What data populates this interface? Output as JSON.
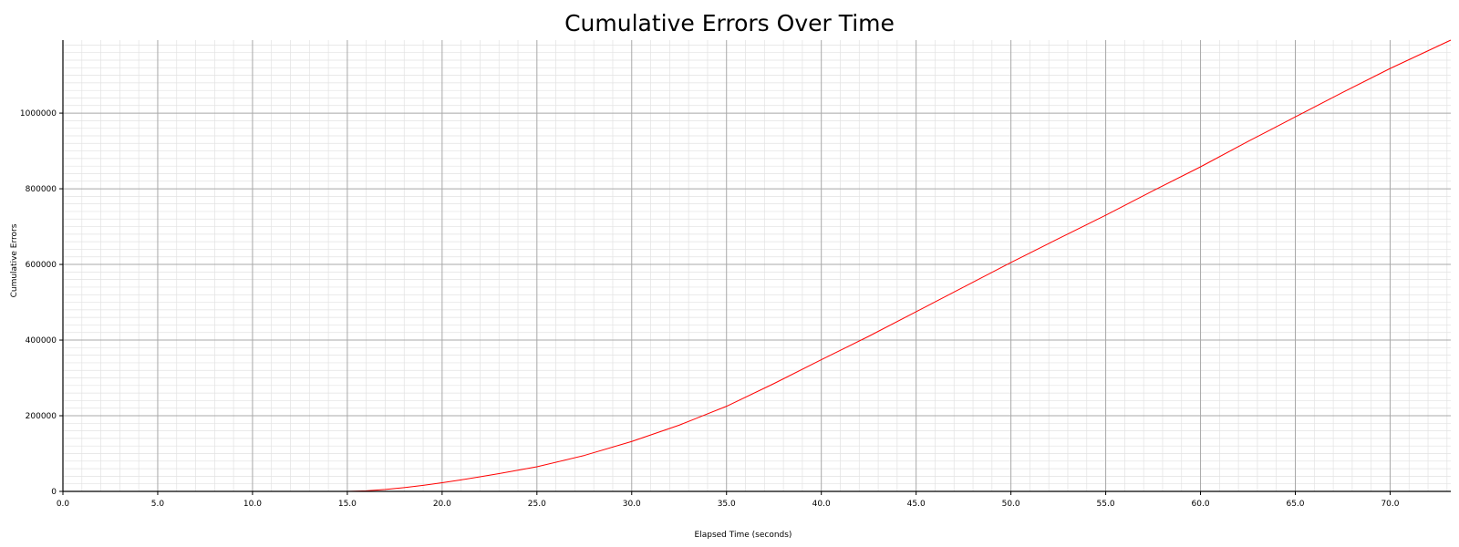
{
  "chart_data": {
    "type": "line",
    "title": "Cumulative Errors Over Time",
    "xlabel": "Elapsed Time (seconds)",
    "ylabel": "Cumulative Errors",
    "xlim": [
      0,
      73.2
    ],
    "ylim": [
      0,
      1193000
    ],
    "x_ticks": [
      0,
      5,
      10,
      15,
      20,
      25,
      30,
      35,
      40,
      45,
      50,
      55,
      60,
      65,
      70
    ],
    "x_tick_labels": [
      "0.0",
      "5.0",
      "10.0",
      "15.0",
      "20.0",
      "25.0",
      "30.0",
      "35.0",
      "40.0",
      "45.0",
      "50.0",
      "55.0",
      "60.0",
      "65.0",
      "70.0"
    ],
    "y_ticks": [
      0,
      200000,
      400000,
      600000,
      800000,
      1000000
    ],
    "y_tick_labels": [
      "0",
      "200000",
      "400000",
      "600000",
      "800000",
      "1000000"
    ],
    "grid": true,
    "minor_grid": true,
    "legend": false,
    "colors": {
      "line": "#ff0000",
      "major_grid": "#a8a8a8",
      "minor_grid": "#e2e2e2",
      "axis": "#000000"
    },
    "series": [
      {
        "x": [
          0,
          5,
          10,
          15,
          16,
          17,
          18,
          19,
          20,
          21,
          22,
          23,
          24,
          25,
          27.5,
          30,
          32.5,
          35,
          37.5,
          40,
          42.5,
          45,
          47.5,
          50,
          52.5,
          55,
          57.5,
          60,
          62.5,
          65,
          67.5,
          70,
          73.2
        ],
        "y": [
          0,
          0,
          0,
          0,
          1500,
          5000,
          10000,
          16000,
          23000,
          30500,
          38500,
          47000,
          56000,
          65000,
          95000,
          132000,
          175000,
          225000,
          285000,
          348000,
          410000,
          475000,
          540000,
          605000,
          668000,
          730000,
          795000,
          858000,
          925000,
          990000,
          1055000,
          1118000,
          1193000
        ]
      }
    ]
  }
}
